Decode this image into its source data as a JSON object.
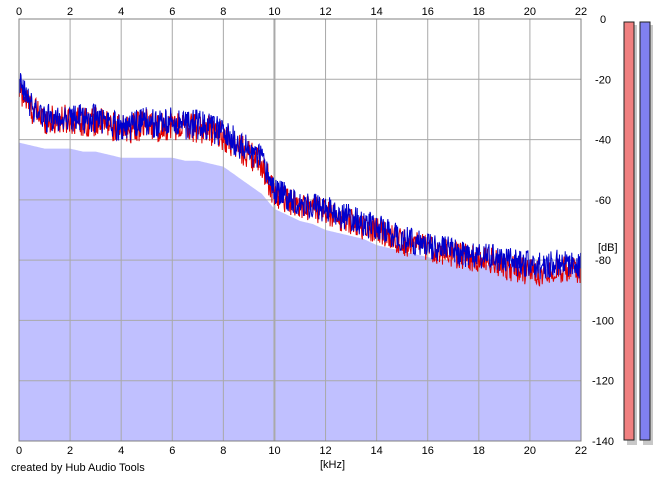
{
  "credit": "created by Hub Audio Tools",
  "colors": {
    "background": "#ffffff",
    "fill": "#c0c0ff",
    "grid": "#a9a9a9",
    "channel_left": "#e00000",
    "channel_right": "#0000cc",
    "meter_left": "#f08080",
    "meter_right": "#8080f0"
  },
  "chart_data": {
    "type": "line",
    "xlabel": "[kHz]",
    "ylabel": "[dB]",
    "xlim": [
      0,
      22
    ],
    "ylim": [
      -140,
      0
    ],
    "x_ticks": [
      "0",
      "2",
      "4",
      "6",
      "8",
      "10",
      "12",
      "14",
      "16",
      "18",
      "20",
      "22"
    ],
    "y_ticks": [
      "0",
      "-20",
      "-40",
      "-60",
      "-80",
      "-100",
      "-120",
      "-140"
    ],
    "grid": true,
    "x_khz": [
      0,
      0.5,
      1,
      1.5,
      2,
      2.5,
      3,
      3.5,
      4,
      4.5,
      5,
      5.5,
      6,
      6.5,
      7,
      7.5,
      8,
      8.5,
      9,
      9.5,
      10,
      10.5,
      11,
      11.5,
      12,
      12.5,
      13,
      13.5,
      14,
      14.5,
      15,
      15.5,
      16,
      16.5,
      17,
      17.5,
      18,
      18.5,
      19,
      19.5,
      20,
      20.5,
      21,
      21.5,
      22
    ],
    "series": [
      {
        "color": "#e00000",
        "values_db": [
          -23,
          -30,
          -33,
          -34,
          -33,
          -34,
          -34,
          -35,
          -37,
          -36,
          -35,
          -36,
          -35,
          -36,
          -36,
          -37,
          -39,
          -42,
          -45,
          -48,
          -58,
          -60,
          -62,
          -63,
          -64,
          -66,
          -67,
          -69,
          -70,
          -72,
          -74,
          -75,
          -76,
          -77,
          -78,
          -79,
          -80,
          -80,
          -82,
          -83,
          -84,
          -84,
          -83,
          -83,
          -84
        ]
      },
      {
        "color": "#0000cc",
        "values_db": [
          -22,
          -29,
          -33,
          -33,
          -33,
          -33,
          -33,
          -34,
          -36,
          -35,
          -34,
          -35,
          -34,
          -35,
          -35,
          -36,
          -38,
          -41,
          -44,
          -47,
          -57,
          -59,
          -61,
          -62,
          -63,
          -65,
          -66,
          -68,
          -69,
          -71,
          -73,
          -74,
          -75,
          -76,
          -77,
          -78,
          -79,
          -79,
          -80,
          -81,
          -81,
          -82,
          -81,
          -81,
          -82
        ]
      }
    ],
    "fill_values_db": [
      -41,
      -42,
      -43,
      -43,
      -43,
      -44,
      -44,
      -45,
      -46,
      -46,
      -46,
      -46,
      -46,
      -47,
      -47,
      -48,
      -49,
      -52,
      -55,
      -58,
      -63,
      -65,
      -67,
      -68,
      -70,
      -71,
      -72,
      -73,
      -75,
      -76,
      -77,
      -78,
      -79,
      -80,
      -80,
      -81,
      -81,
      -82,
      -82,
      -82,
      -83,
      -83,
      -83,
      -83,
      -83
    ]
  },
  "meters": [
    {
      "channel": "left",
      "color": "#f08080",
      "level_fraction": 1.0
    },
    {
      "channel": "right",
      "color": "#8080f0",
      "level_fraction": 1.0
    }
  ]
}
